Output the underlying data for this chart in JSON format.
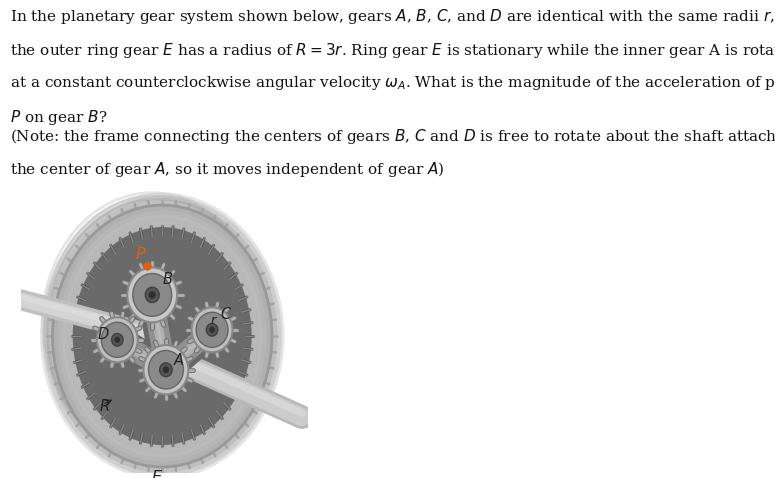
{
  "background_color": "#ffffff",
  "text_lines": [
    "In the planetary gear system shown below, gears $A$, $B$, $C$, and $D$ are identical with the same radii $r$, and",
    "the outer ring gear $E$ has a radius of $R = 3r$. Ring gear $E$ is stationary while the inner gear A is rotating",
    "at a constant counterclockwise angular velocity $\\omega_A$. What is the magnitude of the acceleration of point",
    "$P$ on gear $B$?",
    "(Note: the frame connecting the centers of gears $B$, $C$ and $D$ is free to rotate about the shaft attached to",
    "the center of gear $A$, so it moves independent of gear $A$)"
  ],
  "text_fontsize": 11.0,
  "text_color": "#111111",
  "point_P_color": "#e06010",
  "label_color": "#222222"
}
